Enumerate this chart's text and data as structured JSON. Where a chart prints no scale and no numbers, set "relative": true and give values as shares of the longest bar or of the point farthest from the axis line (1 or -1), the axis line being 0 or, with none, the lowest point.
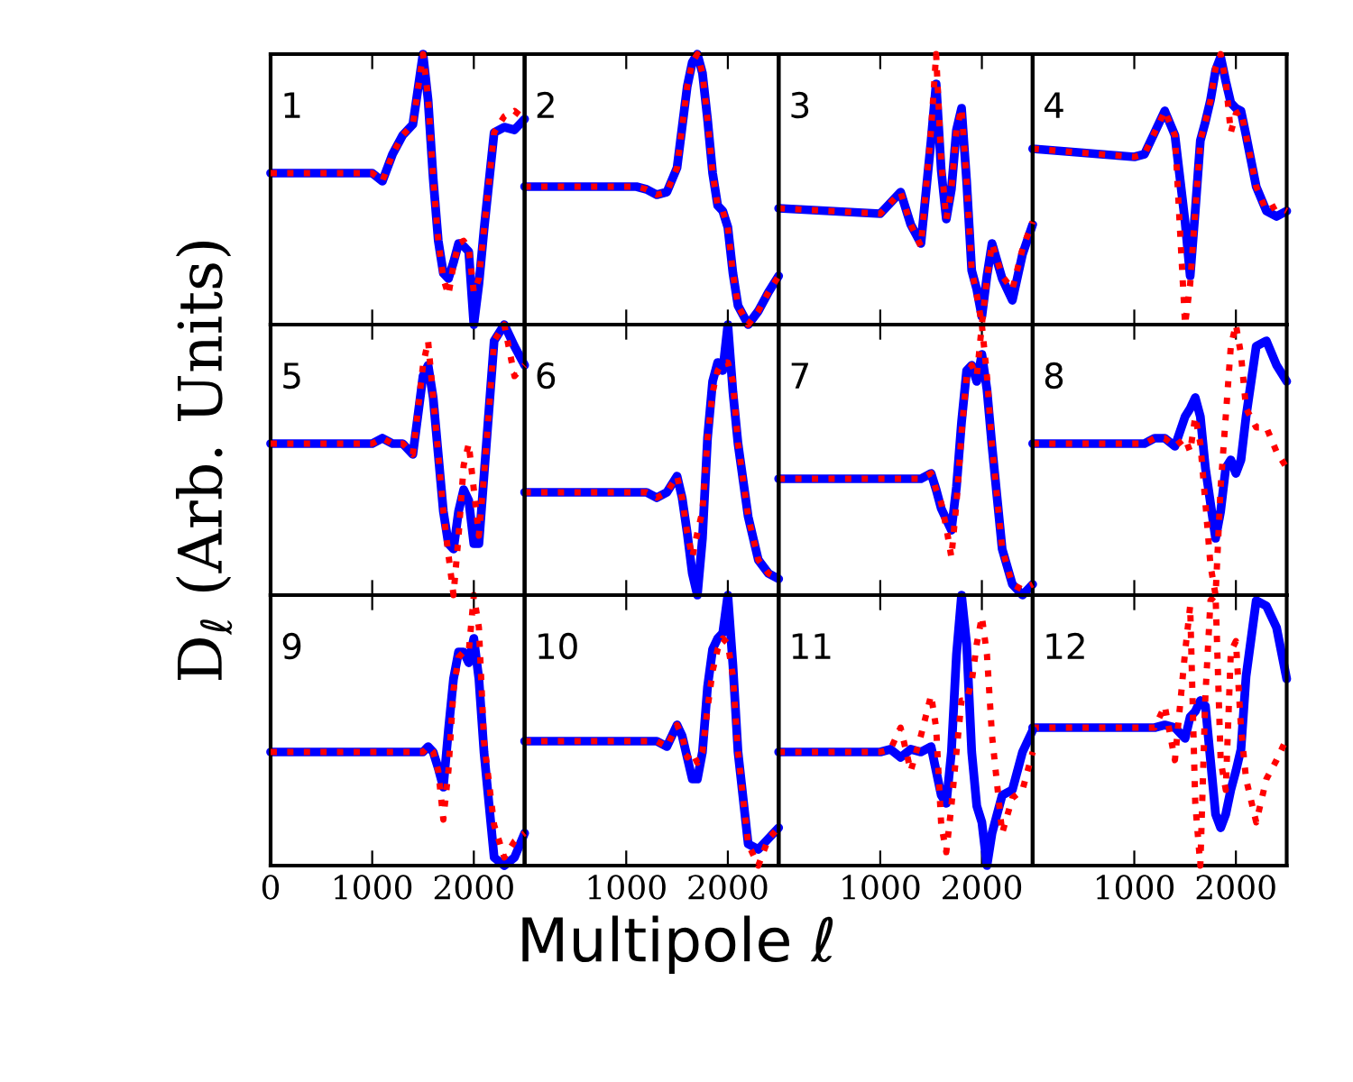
{
  "chart_data": [
    {
      "type": "line",
      "title": "1",
      "xlabel": "Multipole ℓ",
      "ylabel": "D$_{ℓ}$ (Arb. Units)",
      "relative": true,
      "xlim": [
        0,
        2500
      ],
      "xticks": [
        0,
        1000,
        2000
      ],
      "tick_labels": false,
      "x": [
        0,
        1000,
        1100,
        1200,
        1300,
        1400,
        1500,
        1550,
        1600,
        1650,
        1700,
        1750,
        1800,
        1850,
        1900,
        1950,
        2000,
        2050,
        2100,
        2200,
        2300,
        2400,
        2500
      ],
      "series": [
        {
          "color": "#0000ff",
          "line_style": "solid",
          "values": [
            0.56,
            0.56,
            0.53,
            0.63,
            0.7,
            0.74,
            1,
            0.83,
            0.54,
            0.31,
            0.19,
            0.17,
            0.23,
            0.3,
            0.29,
            0.27,
            0,
            0.15,
            0.35,
            0.71,
            0.73,
            0.72,
            0.76
          ]
        },
        {
          "color": "#ff0000",
          "line_style": "dotted",
          "values": [
            0.56,
            0.56,
            0.53,
            0.63,
            0.7,
            0.74,
            1,
            0.84,
            0.54,
            0.31,
            0.17,
            0.11,
            0.22,
            0.3,
            0.31,
            0.28,
            0.12,
            0.17,
            0.35,
            0.71,
            0.77,
            0.79,
            0.76
          ]
        }
      ]
    },
    {
      "type": "line",
      "title": "2",
      "relative": true,
      "xlim": [
        0,
        2500
      ],
      "xticks": [
        0,
        1000,
        2000
      ],
      "tick_labels": false,
      "x": [
        0,
        1000,
        1100,
        1200,
        1300,
        1400,
        1500,
        1550,
        1600,
        1650,
        1700,
        1750,
        1800,
        1850,
        1900,
        1950,
        2000,
        2050,
        2100,
        2200,
        2300,
        2400,
        2500
      ],
      "series": [
        {
          "color": "#0000ff",
          "line_style": "solid",
          "values": [
            0.51,
            0.51,
            0.51,
            0.5,
            0.48,
            0.49,
            0.58,
            0.73,
            0.88,
            0.97,
            1,
            0.93,
            0.76,
            0.56,
            0.44,
            0.42,
            0.36,
            0.19,
            0.07,
            0,
            0.05,
            0.12,
            0.18
          ]
        },
        {
          "color": "#ff0000",
          "line_style": "dotted",
          "values": [
            0.51,
            0.51,
            0.51,
            0.5,
            0.48,
            0.49,
            0.58,
            0.73,
            0.88,
            0.97,
            1,
            0.93,
            0.76,
            0.56,
            0.44,
            0.42,
            0.36,
            0.19,
            0.07,
            0,
            0.05,
            0.12,
            0.18
          ]
        }
      ]
    },
    {
      "type": "line",
      "title": "3",
      "relative": true,
      "xlim": [
        0,
        2500
      ],
      "xticks": [
        0,
        1000,
        2000
      ],
      "tick_labels": false,
      "x": [
        0,
        1000,
        1100,
        1200,
        1300,
        1400,
        1500,
        1550,
        1600,
        1650,
        1700,
        1750,
        1800,
        1850,
        1900,
        1950,
        2000,
        2050,
        2100,
        2200,
        2300,
        2400,
        2500
      ],
      "series": [
        {
          "color": "#0000ff",
          "line_style": "solid",
          "values": [
            0.43,
            0.41,
            0.45,
            0.49,
            0.37,
            0.3,
            0.68,
            0.89,
            0.57,
            0.39,
            0.5,
            0.72,
            0.8,
            0.53,
            0.2,
            0.13,
            0.03,
            0.18,
            0.3,
            0.17,
            0.09,
            0.26,
            0.37
          ]
        },
        {
          "color": "#ff0000",
          "line_style": "dotted",
          "values": [
            0.43,
            0.41,
            0.45,
            0.49,
            0.37,
            0.29,
            0.72,
            1,
            0.6,
            0.39,
            0.5,
            0.72,
            0.8,
            0.53,
            0.2,
            0.11,
            0,
            0.17,
            0.3,
            0.18,
            0.13,
            0.28,
            0.38
          ]
        }
      ]
    },
    {
      "type": "line",
      "title": "4",
      "relative": true,
      "xlim": [
        0,
        2500
      ],
      "xticks": [
        0,
        1000,
        2000
      ],
      "tick_labels": false,
      "x": [
        0,
        1000,
        1100,
        1200,
        1300,
        1400,
        1500,
        1550,
        1600,
        1650,
        1700,
        1750,
        1800,
        1850,
        1900,
        1950,
        2000,
        2050,
        2100,
        2200,
        2300,
        2400,
        2500
      ],
      "series": [
        {
          "color": "#0000ff",
          "line_style": "solid",
          "values": [
            0.65,
            0.62,
            0.63,
            0.71,
            0.79,
            0.7,
            0.38,
            0.18,
            0.42,
            0.68,
            0.75,
            0.83,
            0.94,
            0.99,
            0.9,
            0.82,
            0.8,
            0.79,
            0.7,
            0.51,
            0.42,
            0.4,
            0.42
          ]
        },
        {
          "color": "#ff0000",
          "line_style": "dotted",
          "values": [
            0.65,
            0.62,
            0.63,
            0.71,
            0.79,
            0.7,
            0,
            0.15,
            0.42,
            0.68,
            0.75,
            0.83,
            0.95,
            1,
            0.9,
            0.71,
            0.78,
            0.79,
            0.7,
            0.51,
            0.42,
            0.44,
            0.42
          ]
        }
      ]
    },
    {
      "type": "line",
      "title": "5",
      "relative": true,
      "xlim": [
        0,
        2500
      ],
      "xticks": [
        0,
        1000,
        2000
      ],
      "tick_labels": false,
      "x": [
        0,
        1000,
        1100,
        1200,
        1300,
        1400,
        1500,
        1550,
        1600,
        1650,
        1700,
        1750,
        1800,
        1850,
        1900,
        1950,
        2000,
        2050,
        2100,
        2200,
        2300,
        2400,
        2500
      ],
      "series": [
        {
          "color": "#0000ff",
          "line_style": "solid",
          "values": [
            0.56,
            0.56,
            0.58,
            0.56,
            0.56,
            0.52,
            0.81,
            0.85,
            0.73,
            0.52,
            0.31,
            0.19,
            0.17,
            0.31,
            0.39,
            0.35,
            0.19,
            0.19,
            0.44,
            0.94,
            1,
            0.92,
            0.85
          ]
        },
        {
          "color": "#ff0000",
          "line_style": "dotted",
          "values": [
            0.56,
            0.56,
            0.58,
            0.56,
            0.56,
            0.52,
            0.85,
            0.94,
            0.73,
            0.52,
            0.31,
            0.15,
            0,
            0.22,
            0.48,
            0.56,
            0.39,
            0.22,
            0.44,
            0.94,
            1,
            0.81,
            0.85
          ]
        }
      ]
    },
    {
      "type": "line",
      "title": "6",
      "relative": true,
      "xlim": [
        0,
        2500
      ],
      "xticks": [
        0,
        1000,
        2000
      ],
      "tick_labels": false,
      "x": [
        0,
        1000,
        1100,
        1200,
        1300,
        1400,
        1500,
        1550,
        1600,
        1650,
        1700,
        1750,
        1800,
        1850,
        1900,
        1950,
        2000,
        2050,
        2100,
        2200,
        2300,
        2400,
        2500
      ],
      "series": [
        {
          "color": "#0000ff",
          "line_style": "solid",
          "values": [
            0.38,
            0.38,
            0.38,
            0.38,
            0.36,
            0.38,
            0.44,
            0.36,
            0.23,
            0.08,
            0,
            0.21,
            0.58,
            0.79,
            0.86,
            0.83,
            1,
            0.75,
            0.56,
            0.29,
            0.13,
            0.08,
            0.06
          ]
        },
        {
          "color": "#ff0000",
          "line_style": "dotted",
          "values": [
            0.38,
            0.38,
            0.38,
            0.38,
            0.36,
            0.38,
            0.44,
            0.36,
            0.23,
            0.14,
            0.23,
            0.31,
            0.58,
            0.75,
            0.83,
            0.86,
            0.86,
            0.79,
            0.56,
            0.29,
            0.13,
            0.08,
            0.06
          ]
        }
      ]
    },
    {
      "type": "line",
      "title": "7",
      "relative": true,
      "xlim": [
        0,
        2500
      ],
      "xticks": [
        0,
        1000,
        2000
      ],
      "tick_labels": false,
      "x": [
        0,
        1000,
        1100,
        1200,
        1300,
        1400,
        1500,
        1550,
        1600,
        1650,
        1700,
        1750,
        1800,
        1850,
        1900,
        1950,
        2000,
        2050,
        2100,
        2200,
        2300,
        2400,
        2500
      ],
      "series": [
        {
          "color": "#0000ff",
          "line_style": "solid",
          "values": [
            0.43,
            0.43,
            0.43,
            0.43,
            0.43,
            0.43,
            0.45,
            0.39,
            0.32,
            0.28,
            0.24,
            0.4,
            0.64,
            0.83,
            0.85,
            0.79,
            0.89,
            0.76,
            0.55,
            0.17,
            0.04,
            0,
            0.04
          ]
        },
        {
          "color": "#ff0000",
          "line_style": "dotted",
          "values": [
            0.43,
            0.43,
            0.43,
            0.43,
            0.43,
            0.43,
            0.45,
            0.39,
            0.34,
            0.25,
            0.14,
            0.34,
            0.6,
            0.81,
            0.85,
            0.81,
            1,
            0.81,
            0.55,
            0.17,
            0.04,
            0.02,
            0.04
          ]
        }
      ]
    },
    {
      "type": "line",
      "title": "8",
      "relative": true,
      "xlim": [
        0,
        2500
      ],
      "xticks": [
        0,
        1000,
        2000
      ],
      "tick_labels": false,
      "x": [
        0,
        1000,
        1100,
        1200,
        1300,
        1400,
        1500,
        1550,
        1600,
        1650,
        1700,
        1750,
        1800,
        1850,
        1900,
        1950,
        2000,
        2050,
        2100,
        2200,
        2300,
        2400,
        2500
      ],
      "series": [
        {
          "color": "#0000ff",
          "line_style": "solid",
          "values": [
            0.56,
            0.56,
            0.56,
            0.58,
            0.58,
            0.55,
            0.66,
            0.69,
            0.73,
            0.66,
            0.47,
            0.34,
            0.21,
            0.31,
            0.47,
            0.5,
            0.45,
            0.5,
            0.66,
            0.92,
            0.94,
            0.85,
            0.79
          ]
        },
        {
          "color": "#ff0000",
          "line_style": "dotted",
          "values": [
            0.56,
            0.56,
            0.56,
            0.58,
            0.58,
            0.55,
            0.58,
            0.53,
            0.66,
            0.56,
            0.34,
            0.11,
            0,
            0.4,
            0.66,
            0.92,
            1,
            0.89,
            0.69,
            0.62,
            0.62,
            0.53,
            0.47
          ]
        }
      ]
    },
    {
      "type": "line",
      "title": "9",
      "relative": true,
      "xlim": [
        0,
        2500
      ],
      "xticks": [
        0,
        1000,
        2000
      ],
      "tick_labels": "x",
      "x": [
        0,
        1000,
        1100,
        1200,
        1300,
        1400,
        1500,
        1550,
        1600,
        1650,
        1700,
        1750,
        1800,
        1850,
        1900,
        1950,
        2000,
        2050,
        2100,
        2200,
        2300,
        2400,
        2500
      ],
      "series": [
        {
          "color": "#0000ff",
          "line_style": "solid",
          "values": [
            0.42,
            0.42,
            0.42,
            0.42,
            0.42,
            0.42,
            0.42,
            0.44,
            0.42,
            0.36,
            0.29,
            0.5,
            0.69,
            0.79,
            0.79,
            0.75,
            0.84,
            0.69,
            0.42,
            0.03,
            0,
            0.03,
            0.12
          ]
        },
        {
          "color": "#ff0000",
          "line_style": "dotted",
          "values": [
            0.42,
            0.42,
            0.42,
            0.42,
            0.42,
            0.42,
            0.42,
            0.44,
            0.42,
            0.35,
            0.17,
            0.35,
            0.65,
            0.77,
            0.79,
            0.79,
            1,
            0.88,
            0.46,
            0.15,
            0.03,
            0.09,
            0.12
          ]
        }
      ]
    },
    {
      "type": "line",
      "title": "10",
      "relative": true,
      "xlim": [
        0,
        2500
      ],
      "xticks": [
        1000,
        2000
      ],
      "tick_labels": "x",
      "x": [
        0,
        1000,
        1100,
        1200,
        1300,
        1400,
        1500,
        1550,
        1600,
        1650,
        1700,
        1750,
        1800,
        1850,
        1900,
        1950,
        2000,
        2050,
        2100,
        2200,
        2300,
        2400,
        2500
      ],
      "series": [
        {
          "color": "#0000ff",
          "line_style": "solid",
          "values": [
            0.46,
            0.46,
            0.46,
            0.46,
            0.46,
            0.44,
            0.52,
            0.48,
            0.4,
            0.32,
            0.32,
            0.42,
            0.66,
            0.8,
            0.84,
            0.86,
            1,
            0.74,
            0.42,
            0.08,
            0.06,
            0.1,
            0.14
          ]
        },
        {
          "color": "#ff0000",
          "line_style": "dotted",
          "values": [
            0.46,
            0.46,
            0.46,
            0.46,
            0.46,
            0.44,
            0.52,
            0.48,
            0.4,
            0.42,
            0.38,
            0.42,
            0.58,
            0.72,
            0.8,
            0.84,
            0.82,
            0.7,
            0.42,
            0.08,
            0,
            0.1,
            0.14
          ]
        }
      ]
    },
    {
      "type": "line",
      "title": "11",
      "relative": true,
      "xlim": [
        0,
        2500
      ],
      "xticks": [
        1000,
        2000
      ],
      "tick_labels": "x",
      "x": [
        0,
        1000,
        1100,
        1200,
        1300,
        1400,
        1500,
        1550,
        1600,
        1650,
        1700,
        1750,
        1800,
        1850,
        1900,
        1950,
        2000,
        2050,
        2100,
        2200,
        2300,
        2400,
        2500
      ],
      "series": [
        {
          "color": "#0000ff",
          "line_style": "solid",
          "values": [
            0.42,
            0.42,
            0.43,
            0.4,
            0.43,
            0.42,
            0.44,
            0.35,
            0.26,
            0.23,
            0.42,
            0.78,
            1,
            0.82,
            0.42,
            0.22,
            0.16,
            0,
            0.12,
            0.26,
            0.28,
            0.42,
            0.5
          ]
        },
        {
          "color": "#ff0000",
          "line_style": "dotted",
          "values": [
            0.42,
            0.42,
            0.43,
            0.51,
            0.35,
            0.48,
            0.63,
            0.51,
            0.15,
            0.05,
            0.22,
            0.42,
            0.61,
            0.61,
            0.68,
            0.82,
            0.92,
            0.78,
            0.48,
            0.12,
            0.25,
            0.28,
            0.42
          ]
        }
      ]
    },
    {
      "type": "line",
      "title": "12",
      "relative": true,
      "xlim": [
        0,
        2500
      ],
      "xticks": [
        1000,
        2000
      ],
      "tick_labels": "x",
      "x": [
        0,
        1000,
        1100,
        1200,
        1300,
        1400,
        1500,
        1550,
        1600,
        1650,
        1700,
        1750,
        1800,
        1850,
        1900,
        1950,
        2000,
        2050,
        2100,
        2200,
        2300,
        2400,
        2500
      ],
      "series": [
        {
          "color": "#0000ff",
          "line_style": "solid",
          "values": [
            0.51,
            0.51,
            0.51,
            0.51,
            0.52,
            0.51,
            0.47,
            0.55,
            0.57,
            0.61,
            0.59,
            0.39,
            0.19,
            0.14,
            0.19,
            0.28,
            0.35,
            0.43,
            0.7,
            0.98,
            0.96,
            0.88,
            0.69
          ]
        },
        {
          "color": "#ff0000",
          "line_style": "dotted",
          "values": [
            0.51,
            0.51,
            0.51,
            0.51,
            0.59,
            0.39,
            0.79,
            0.96,
            0.23,
            0,
            0.63,
            0.98,
            1,
            0.39,
            0.28,
            0.79,
            0.83,
            0.51,
            0.32,
            0.16,
            0.32,
            0.39,
            0.47
          ]
        }
      ]
    }
  ]
}
